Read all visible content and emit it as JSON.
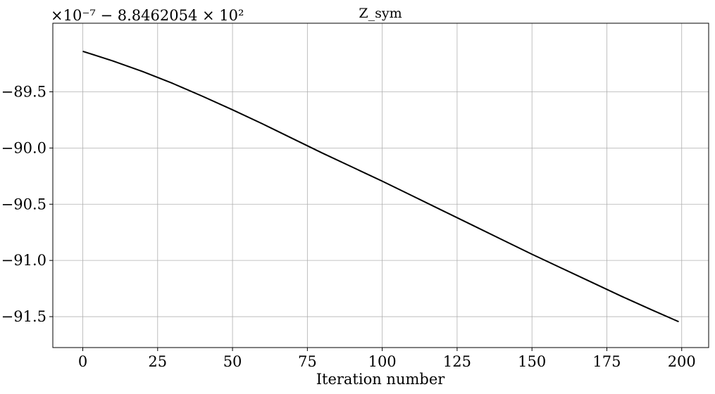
{
  "chart_data": {
    "type": "line",
    "title": "Z_sym",
    "xlabel": "Iteration number",
    "ylabel": "",
    "offset_label": "×10⁻⁷ − 8.8462054 × 10²",
    "xlim": [
      -10,
      209
    ],
    "ylim": [
      -91.775,
      -88.89
    ],
    "grid": true,
    "x_ticks": [
      0,
      25,
      50,
      75,
      100,
      125,
      150,
      175,
      200
    ],
    "x_tick_labels": [
      "0",
      "25",
      "50",
      "75",
      "100",
      "125",
      "150",
      "175",
      "200"
    ],
    "y_ticks": [
      -89.5,
      -90.0,
      -90.5,
      -91.0,
      -91.5
    ],
    "y_tick_labels": [
      "−89.5",
      "−90.0",
      "−90.5",
      "−91.0",
      "−91.5"
    ],
    "series": [
      {
        "color": "#000000",
        "x": [
          0,
          10,
          20,
          30,
          40,
          50,
          60,
          70,
          80,
          90,
          100,
          110,
          120,
          130,
          140,
          150,
          160,
          170,
          180,
          190,
          199
        ],
        "y": [
          -89.14,
          -89.225,
          -89.32,
          -89.425,
          -89.54,
          -89.66,
          -89.785,
          -89.915,
          -90.045,
          -90.17,
          -90.295,
          -90.425,
          -90.555,
          -90.685,
          -90.815,
          -90.945,
          -91.07,
          -91.195,
          -91.32,
          -91.44,
          -91.545
        ]
      }
    ]
  }
}
